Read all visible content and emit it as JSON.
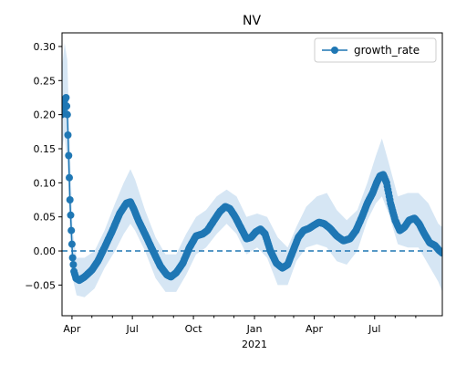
{
  "chart_data": {
    "type": "line",
    "title": "NV",
    "xlabel": "",
    "ylabel": "",
    "ylim": [
      -0.095,
      0.32
    ],
    "xlim": [
      "2020-03-17",
      "2021-10-11"
    ],
    "x_ticks_major": [
      {
        "date": "2020-04-01",
        "label": "Apr"
      },
      {
        "date": "2020-07-01",
        "label": "Jul"
      },
      {
        "date": "2020-10-01",
        "label": "Oct"
      },
      {
        "date": "2021-01-01",
        "label": "Jan"
      },
      {
        "date": "2021-04-01",
        "label": "Apr"
      },
      {
        "date": "2021-07-01",
        "label": "Jul"
      }
    ],
    "x_ticks_minor": [
      "2020-05-01",
      "2020-06-01",
      "2020-08-01",
      "2020-09-01",
      "2020-11-01",
      "2020-12-01",
      "2021-02-01",
      "2021-03-01",
      "2021-05-01",
      "2021-06-01",
      "2021-08-01",
      "2021-09-01"
    ],
    "x_year_label": "2021",
    "y_ticks": [
      -0.05,
      0.0,
      0.05,
      0.1,
      0.15,
      0.2,
      0.25,
      0.3
    ],
    "y_tick_labels": [
      "−0.05",
      "0.00",
      "0.05",
      "0.10",
      "0.15",
      "0.20",
      "0.25",
      "0.30"
    ],
    "reference_line": {
      "y": 0.0,
      "style": "dashed"
    },
    "legend": {
      "position": "top-right",
      "entries": [
        "growth_rate"
      ]
    },
    "grid": false,
    "series": [
      {
        "name": "growth_rate",
        "marker": "circle",
        "points": [
          [
            "2020-03-17",
            0.2
          ],
          [
            "2020-03-20",
            0.22
          ],
          [
            "2020-03-23",
            0.225
          ],
          [
            "2020-03-25",
            0.2
          ],
          [
            "2020-03-27",
            0.14
          ],
          [
            "2020-03-29",
            0.075
          ],
          [
            "2020-03-31",
            0.03
          ],
          [
            "2020-04-02",
            -0.01
          ],
          [
            "2020-04-04",
            -0.03
          ],
          [
            "2020-04-07",
            -0.04
          ],
          [
            "2020-04-12",
            -0.043
          ],
          [
            "2020-04-20",
            -0.038
          ],
          [
            "2020-05-01",
            -0.028
          ],
          [
            "2020-05-10",
            -0.015
          ],
          [
            "2020-05-20",
            0.005
          ],
          [
            "2020-06-01",
            0.03
          ],
          [
            "2020-06-12",
            0.055
          ],
          [
            "2020-06-22",
            0.07
          ],
          [
            "2020-06-28",
            0.072
          ],
          [
            "2020-07-03",
            0.062
          ],
          [
            "2020-07-10",
            0.045
          ],
          [
            "2020-07-20",
            0.025
          ],
          [
            "2020-08-01",
            0.0
          ],
          [
            "2020-08-12",
            -0.022
          ],
          [
            "2020-08-22",
            -0.035
          ],
          [
            "2020-08-28",
            -0.038
          ],
          [
            "2020-09-05",
            -0.032
          ],
          [
            "2020-09-15",
            -0.018
          ],
          [
            "2020-09-25",
            0.005
          ],
          [
            "2020-10-05",
            0.022
          ],
          [
            "2020-10-15",
            0.025
          ],
          [
            "2020-10-22",
            0.03
          ],
          [
            "2020-11-01",
            0.045
          ],
          [
            "2020-11-10",
            0.058
          ],
          [
            "2020-11-18",
            0.065
          ],
          [
            "2020-11-25",
            0.062
          ],
          [
            "2020-12-03",
            0.05
          ],
          [
            "2020-12-12",
            0.033
          ],
          [
            "2020-12-20",
            0.018
          ],
          [
            "2020-12-27",
            0.02
          ],
          [
            "2021-01-03",
            0.028
          ],
          [
            "2021-01-10",
            0.032
          ],
          [
            "2021-01-17",
            0.025
          ],
          [
            "2021-01-25",
            0.0
          ],
          [
            "2021-02-03",
            -0.018
          ],
          [
            "2021-02-12",
            -0.025
          ],
          [
            "2021-02-20",
            -0.02
          ],
          [
            "2021-02-28",
            0.0
          ],
          [
            "2021-03-08",
            0.02
          ],
          [
            "2021-03-16",
            0.03
          ],
          [
            "2021-03-24",
            0.033
          ],
          [
            "2021-04-01",
            0.038
          ],
          [
            "2021-04-08",
            0.042
          ],
          [
            "2021-04-16",
            0.04
          ],
          [
            "2021-04-25",
            0.033
          ],
          [
            "2021-05-05",
            0.022
          ],
          [
            "2021-05-15",
            0.015
          ],
          [
            "2021-05-25",
            0.018
          ],
          [
            "2021-06-03",
            0.03
          ],
          [
            "2021-06-12",
            0.05
          ],
          [
            "2021-06-20",
            0.07
          ],
          [
            "2021-06-28",
            0.085
          ],
          [
            "2021-07-04",
            0.1
          ],
          [
            "2021-07-09",
            0.11
          ],
          [
            "2021-07-14",
            0.112
          ],
          [
            "2021-07-19",
            0.1
          ],
          [
            "2021-07-25",
            0.07
          ],
          [
            "2021-08-01",
            0.045
          ],
          [
            "2021-08-08",
            0.03
          ],
          [
            "2021-08-15",
            0.035
          ],
          [
            "2021-08-22",
            0.045
          ],
          [
            "2021-08-30",
            0.048
          ],
          [
            "2021-09-06",
            0.04
          ],
          [
            "2021-09-14",
            0.025
          ],
          [
            "2021-09-22",
            0.012
          ],
          [
            "2021-09-30",
            0.008
          ],
          [
            "2021-10-06",
            0.001
          ],
          [
            "2021-10-11",
            -0.003
          ]
        ],
        "band_upper": [
          [
            "2020-03-17",
            0.27
          ],
          [
            "2020-03-21",
            0.305
          ],
          [
            "2020-03-25",
            0.28
          ],
          [
            "2020-03-29",
            0.15
          ],
          [
            "2020-04-02",
            0.03
          ],
          [
            "2020-04-08",
            -0.01
          ],
          [
            "2020-04-20",
            -0.01
          ],
          [
            "2020-05-05",
            0.0
          ],
          [
            "2020-05-20",
            0.03
          ],
          [
            "2020-06-05",
            0.07
          ],
          [
            "2020-06-18",
            0.1
          ],
          [
            "2020-06-28",
            0.12
          ],
          [
            "2020-07-05",
            0.105
          ],
          [
            "2020-07-20",
            0.06
          ],
          [
            "2020-08-05",
            0.02
          ],
          [
            "2020-08-20",
            -0.005
          ],
          [
            "2020-09-05",
            -0.005
          ],
          [
            "2020-09-20",
            0.025
          ],
          [
            "2020-10-05",
            0.05
          ],
          [
            "2020-10-20",
            0.06
          ],
          [
            "2020-11-05",
            0.08
          ],
          [
            "2020-11-20",
            0.09
          ],
          [
            "2020-12-05",
            0.08
          ],
          [
            "2020-12-20",
            0.05
          ],
          [
            "2021-01-05",
            0.055
          ],
          [
            "2021-01-20",
            0.05
          ],
          [
            "2021-02-05",
            0.02
          ],
          [
            "2021-02-20",
            0.005
          ],
          [
            "2021-03-05",
            0.035
          ],
          [
            "2021-03-20",
            0.065
          ],
          [
            "2021-04-05",
            0.08
          ],
          [
            "2021-04-20",
            0.085
          ],
          [
            "2021-05-05",
            0.06
          ],
          [
            "2021-05-20",
            0.045
          ],
          [
            "2021-06-05",
            0.06
          ],
          [
            "2021-06-20",
            0.1
          ],
          [
            "2021-07-03",
            0.14
          ],
          [
            "2021-07-12",
            0.165
          ],
          [
            "2021-07-22",
            0.13
          ],
          [
            "2021-08-05",
            0.08
          ],
          [
            "2021-08-20",
            0.085
          ],
          [
            "2021-09-05",
            0.085
          ],
          [
            "2021-09-20",
            0.07
          ],
          [
            "2021-10-05",
            0.04
          ],
          [
            "2021-10-11",
            0.035
          ]
        ],
        "band_lower": [
          [
            "2020-03-17",
            0.15
          ],
          [
            "2020-03-21",
            0.17
          ],
          [
            "2020-03-25",
            0.13
          ],
          [
            "2020-03-29",
            0.02
          ],
          [
            "2020-04-02",
            -0.04
          ],
          [
            "2020-04-08",
            -0.065
          ],
          [
            "2020-04-20",
            -0.068
          ],
          [
            "2020-05-05",
            -0.055
          ],
          [
            "2020-05-20",
            -0.025
          ],
          [
            "2020-06-05",
            0.0
          ],
          [
            "2020-06-18",
            0.025
          ],
          [
            "2020-06-28",
            0.04
          ],
          [
            "2020-07-05",
            0.03
          ],
          [
            "2020-07-20",
            0.0
          ],
          [
            "2020-08-05",
            -0.04
          ],
          [
            "2020-08-20",
            -0.06
          ],
          [
            "2020-09-05",
            -0.06
          ],
          [
            "2020-09-20",
            -0.035
          ],
          [
            "2020-10-05",
            -0.005
          ],
          [
            "2020-10-20",
            0.005
          ],
          [
            "2020-11-05",
            0.025
          ],
          [
            "2020-11-20",
            0.04
          ],
          [
            "2020-12-05",
            0.025
          ],
          [
            "2020-12-20",
            -0.005
          ],
          [
            "2021-01-05",
            0.005
          ],
          [
            "2021-01-20",
            -0.01
          ],
          [
            "2021-02-05",
            -0.05
          ],
          [
            "2021-02-20",
            -0.05
          ],
          [
            "2021-03-05",
            -0.015
          ],
          [
            "2021-03-20",
            0.005
          ],
          [
            "2021-04-05",
            0.01
          ],
          [
            "2021-04-20",
            0.005
          ],
          [
            "2021-05-05",
            -0.015
          ],
          [
            "2021-05-20",
            -0.02
          ],
          [
            "2021-06-05",
            0.0
          ],
          [
            "2021-06-20",
            0.045
          ],
          [
            "2021-07-03",
            0.07
          ],
          [
            "2021-07-12",
            0.08
          ],
          [
            "2021-07-22",
            0.055
          ],
          [
            "2021-08-05",
            0.01
          ],
          [
            "2021-08-20",
            0.005
          ],
          [
            "2021-09-05",
            0.005
          ],
          [
            "2021-09-20",
            -0.02
          ],
          [
            "2021-10-05",
            -0.045
          ],
          [
            "2021-10-11",
            -0.06
          ]
        ]
      }
    ],
    "colors": {
      "line": "#1f77b4",
      "band": "#d6e6f4",
      "axes": "#000000",
      "background": "#ffffff"
    }
  }
}
